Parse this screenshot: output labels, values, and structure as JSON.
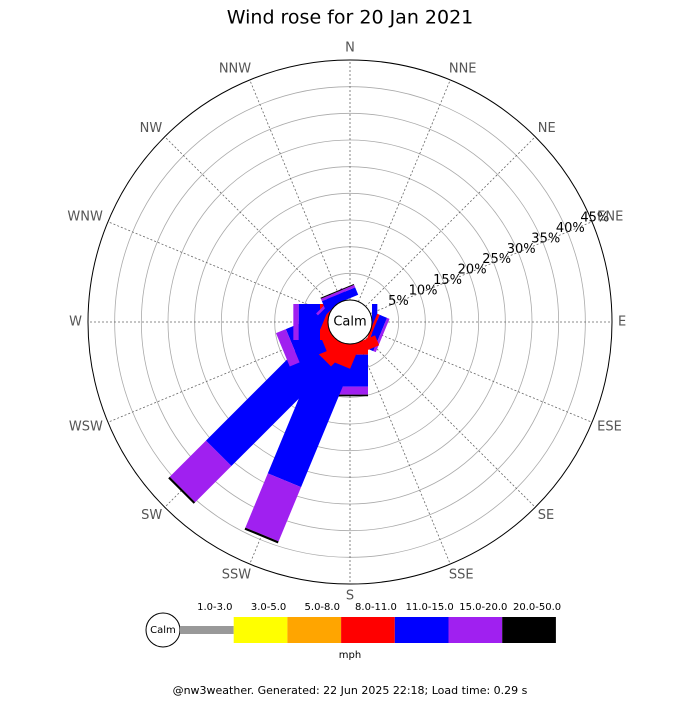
{
  "chart_data": {
    "type": "windrose",
    "title": "Wind rose for 20 Jan 2021",
    "categories": [
      "N",
      "NNE",
      "NE",
      "ENE",
      "E",
      "ESE",
      "SE",
      "SSE",
      "S",
      "SSW",
      "SW",
      "WSW",
      "W",
      "WNW",
      "NW",
      "NNW"
    ],
    "series": [
      {
        "name": "1.0-3.0",
        "color": "#999999",
        "values": [
          0,
          0,
          0,
          0,
          0,
          0,
          0,
          0,
          0,
          0,
          0,
          0,
          0,
          0,
          0,
          0
        ]
      },
      {
        "name": "3.0-5.0",
        "color": "#ffff00",
        "values": [
          0,
          0,
          0,
          0,
          0,
          0,
          0,
          0,
          0,
          0,
          0,
          0,
          0,
          0,
          0,
          0
        ]
      },
      {
        "name": "5.0-8.0",
        "color": "#ffa500",
        "values": [
          0,
          0,
          0,
          0,
          0,
          0,
          0,
          0,
          0,
          0,
          0,
          0,
          0,
          0,
          0,
          0
        ]
      },
      {
        "name": "8.0-11.0",
        "color": "#ff0000",
        "values": [
          0,
          0,
          0,
          0,
          0,
          0.5,
          0,
          2,
          2,
          4,
          4.3,
          2,
          1.5,
          0.5,
          0,
          0
        ]
      },
      {
        "name": "11.0-15.0",
        "color": "#0000ff",
        "values": [
          0,
          0,
          0,
          0,
          1,
          1.5,
          0,
          0,
          6,
          24,
          26.4,
          5.5,
          4,
          1,
          1,
          1.5
        ]
      },
      {
        "name": "15.0-20.0",
        "color": "#a020f0",
        "values": [
          0,
          0,
          0,
          0,
          0,
          0.5,
          0,
          0,
          1.5,
          11,
          9.6,
          2,
          1,
          0,
          0.5,
          0.5
        ]
      },
      {
        "name": "20.0-50.0",
        "color": "#000000",
        "values": [
          0,
          0,
          0,
          0,
          0,
          0,
          0,
          0,
          0.3,
          0.4,
          0.4,
          0,
          0,
          0,
          0,
          0.2
        ]
      }
    ],
    "rlim": [
      0,
      45
    ],
    "rticks": [
      {
        "value": 5,
        "label": "5%"
      },
      {
        "value": 10,
        "label": "10%"
      },
      {
        "value": 15,
        "label": "15%"
      },
      {
        "value": 20,
        "label": "20%"
      },
      {
        "value": 25,
        "label": "25%"
      },
      {
        "value": 30,
        "label": "30%"
      },
      {
        "value": 35,
        "label": "35%"
      },
      {
        "value": 40,
        "label": "40%"
      },
      {
        "value": 45,
        "label": "45%"
      }
    ],
    "grid": true,
    "calm_label": "Calm",
    "unit": "mph",
    "footer": "@nw3weather. Generated: 22 Jun 2025 22:18; Load time: 0.29 s"
  }
}
